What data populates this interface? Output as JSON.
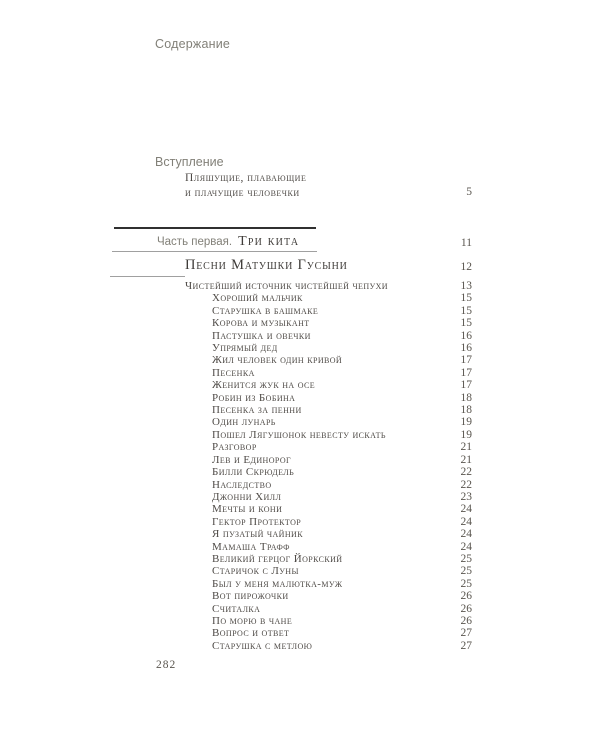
{
  "page": {
    "header": "Содержание",
    "folio": "282"
  },
  "intro": {
    "label": "Вступление",
    "title_line1": "Пляшущие, плавающие",
    "title_line2": "и плачущие человечки",
    "page": "5"
  },
  "part": {
    "prefix": "Часть первая.",
    "title": "Три кита",
    "page": "11"
  },
  "section": {
    "title": "Песни Матушки Гусыни",
    "page": "12"
  },
  "entries": [
    {
      "title": "Чистейший источник чистейшей чепухи",
      "page": "13",
      "level": 1
    },
    {
      "title": "Хороший мальчик",
      "page": "15",
      "level": 2
    },
    {
      "title": "Старушка в башмаке",
      "page": "15",
      "level": 2
    },
    {
      "title": "Корова и музыкант",
      "page": "15",
      "level": 2
    },
    {
      "title": "Пастушка и овечки",
      "page": "16",
      "level": 2
    },
    {
      "title": "Упрямый дед",
      "page": "16",
      "level": 2
    },
    {
      "title": "Жил человек один кривой",
      "page": "17",
      "level": 2
    },
    {
      "title": "Песенка",
      "page": "17",
      "level": 2
    },
    {
      "title": "Женится жук на осе",
      "page": "17",
      "level": 2
    },
    {
      "title": "Робин из Бобина",
      "page": "18",
      "level": 2
    },
    {
      "title": "Песенка за пенни",
      "page": "18",
      "level": 2
    },
    {
      "title": "Один лунарь",
      "page": "19",
      "level": 2
    },
    {
      "title": "Пошел Лягушонок невесту искать",
      "page": "19",
      "level": 2
    },
    {
      "title": "Разговор",
      "page": "21",
      "level": 2
    },
    {
      "title": "Лев и Единорог",
      "page": "21",
      "level": 2
    },
    {
      "title": "Билли Скрюдель",
      "page": "22",
      "level": 2
    },
    {
      "title": "Наследство",
      "page": "22",
      "level": 2
    },
    {
      "title": "Джонни Хилл",
      "page": "23",
      "level": 2
    },
    {
      "title": "Мечты и кони",
      "page": "24",
      "level": 2
    },
    {
      "title": "Гектор Протектор",
      "page": "24",
      "level": 2
    },
    {
      "title": "Я пузатый чайник",
      "page": "24",
      "level": 2
    },
    {
      "title": "Мамаша Трафф",
      "page": "24",
      "level": 2
    },
    {
      "title": "Великий герцог Йоркский",
      "page": "25",
      "level": 2
    },
    {
      "title": "Старичок с Луны",
      "page": "25",
      "level": 2
    },
    {
      "title": "Был у меня малютка-муж",
      "page": "25",
      "level": 2
    },
    {
      "title": "Вот пирожочки",
      "page": "26",
      "level": 2
    },
    {
      "title": "Считалка",
      "page": "26",
      "level": 2
    },
    {
      "title": "По морю в чане",
      "page": "26",
      "level": 2
    },
    {
      "title": "Вопрос и ответ",
      "page": "27",
      "level": 2
    },
    {
      "title": "Старушка с метлою",
      "page": "27",
      "level": 2
    }
  ],
  "colors": {
    "paper": "#ffffff",
    "sans_gray": "#828078",
    "serif_dark": "#4e4a46",
    "serif_darker": "#3f3c39",
    "num_gray": "#5a564f",
    "rule_dark": "#303030",
    "rule_light": "#a0a0a0"
  }
}
